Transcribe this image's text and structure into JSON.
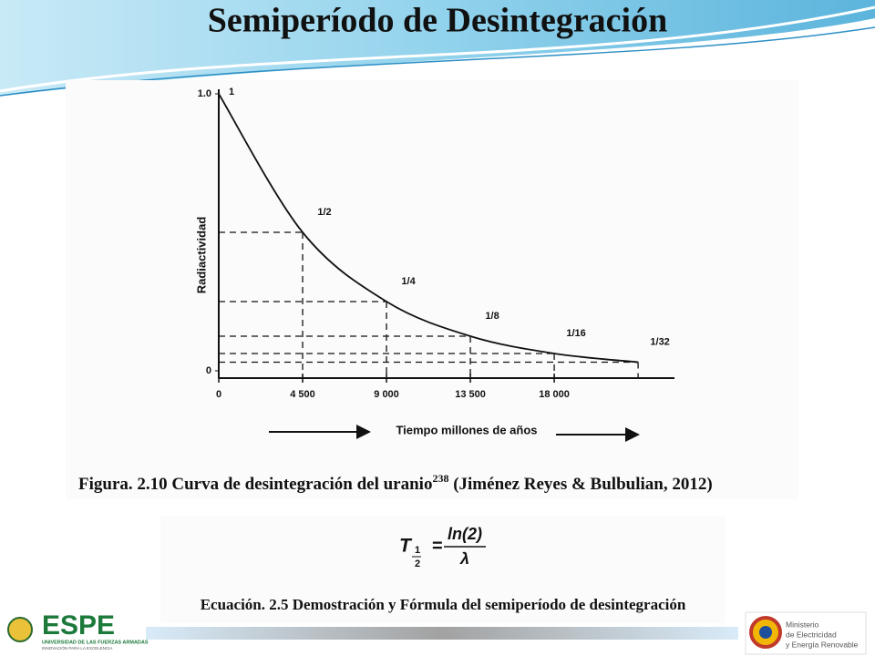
{
  "slide_title": "Semiperíodo de Desintegración",
  "chart_data": {
    "type": "line",
    "x_label": "Tiempo millones de años",
    "y_label": "Radiactividad",
    "x": [
      0,
      4500,
      9000,
      13500,
      18000,
      22500
    ],
    "series": [
      {
        "color": "#111111",
        "values": [
          1,
          0.5,
          0.25,
          0.125,
          0.0625,
          0.03125
        ],
        "value_labels": [
          "1",
          "1/2",
          "1/4",
          "1/8",
          "1/16",
          "1/32"
        ]
      }
    ],
    "xlim": [
      0,
      24500
    ],
    "xticks": [
      0,
      {
        "value": 4500,
        "label": "4 500"
      },
      {
        "value": 9000,
        "label": "9 000"
      },
      {
        "value": 13500,
        "label": "13 500"
      },
      {
        "value": 18000,
        "label": "18 000"
      }
    ],
    "ylim": [
      0,
      1
    ],
    "yticks": [
      0,
      {
        "value": 1,
        "label": "1.0"
      }
    ],
    "guides": true
  },
  "figure_caption": {
    "text": "Figura. 2.10 Curva de desintegración del uranio",
    "superscript": "238",
    "source": " (Jiménez Reyes & Bulbulian, 2012)"
  },
  "equation": {
    "symbol": "T",
    "sub_num": "1",
    "sub_den": "2",
    "equals": "=",
    "numerator": "ln(2)",
    "denominator": "λ"
  },
  "equation_caption": "Ecuación. 2.5 Demostración y Fórmula del semiperíodo de desintegración",
  "logo_left": {
    "name": "ESPE",
    "line1": "UNIVERSIDAD DE LAS FUERZAS ARMADAS",
    "line2": "INNOVACIÓN PARA LA EXCELENCIA"
  },
  "logo_right": {
    "line1": "Ministerio",
    "line2": "de Electricidad",
    "line3": "y Energía Renovable"
  }
}
